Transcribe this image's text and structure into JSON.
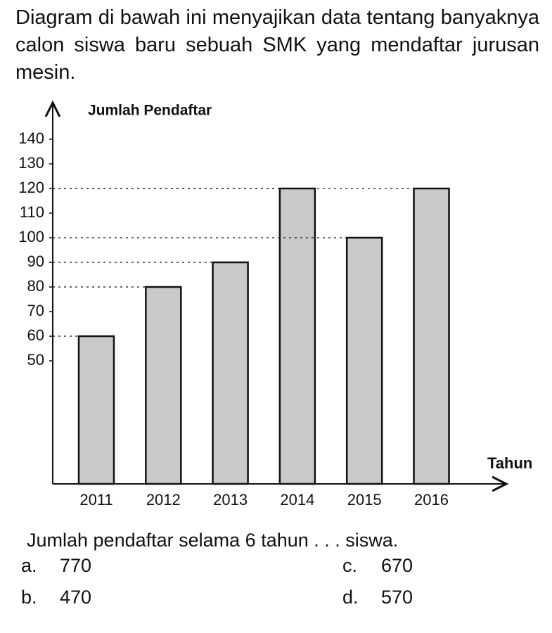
{
  "problem": {
    "text": "Diagram di bawah ini menyajikan data tentang banyaknya calon siswa baru sebuah SMK yang mendaftar jurusan mesin.",
    "question": "Jumlah pendaftar selama 6 tahun . . . siswa.",
    "options": [
      {
        "label": "a.",
        "text": "770"
      },
      {
        "label": "b.",
        "text": "470"
      },
      {
        "label": "c.",
        "text": "670"
      },
      {
        "label": "d.",
        "text": "570"
      }
    ]
  },
  "chart_data": {
    "type": "bar",
    "y_label": "Jumlah Pendaftar",
    "x_label": "Tahun",
    "categories": [
      "2011",
      "2012",
      "2013",
      "2014",
      "2015",
      "2016"
    ],
    "values": [
      60,
      80,
      90,
      120,
      100,
      120
    ],
    "color": "#c9c9c9",
    "ylim": [
      0,
      150
    ],
    "yticks": [
      50,
      60,
      70,
      80,
      90,
      100,
      110,
      120,
      130,
      140
    ]
  }
}
